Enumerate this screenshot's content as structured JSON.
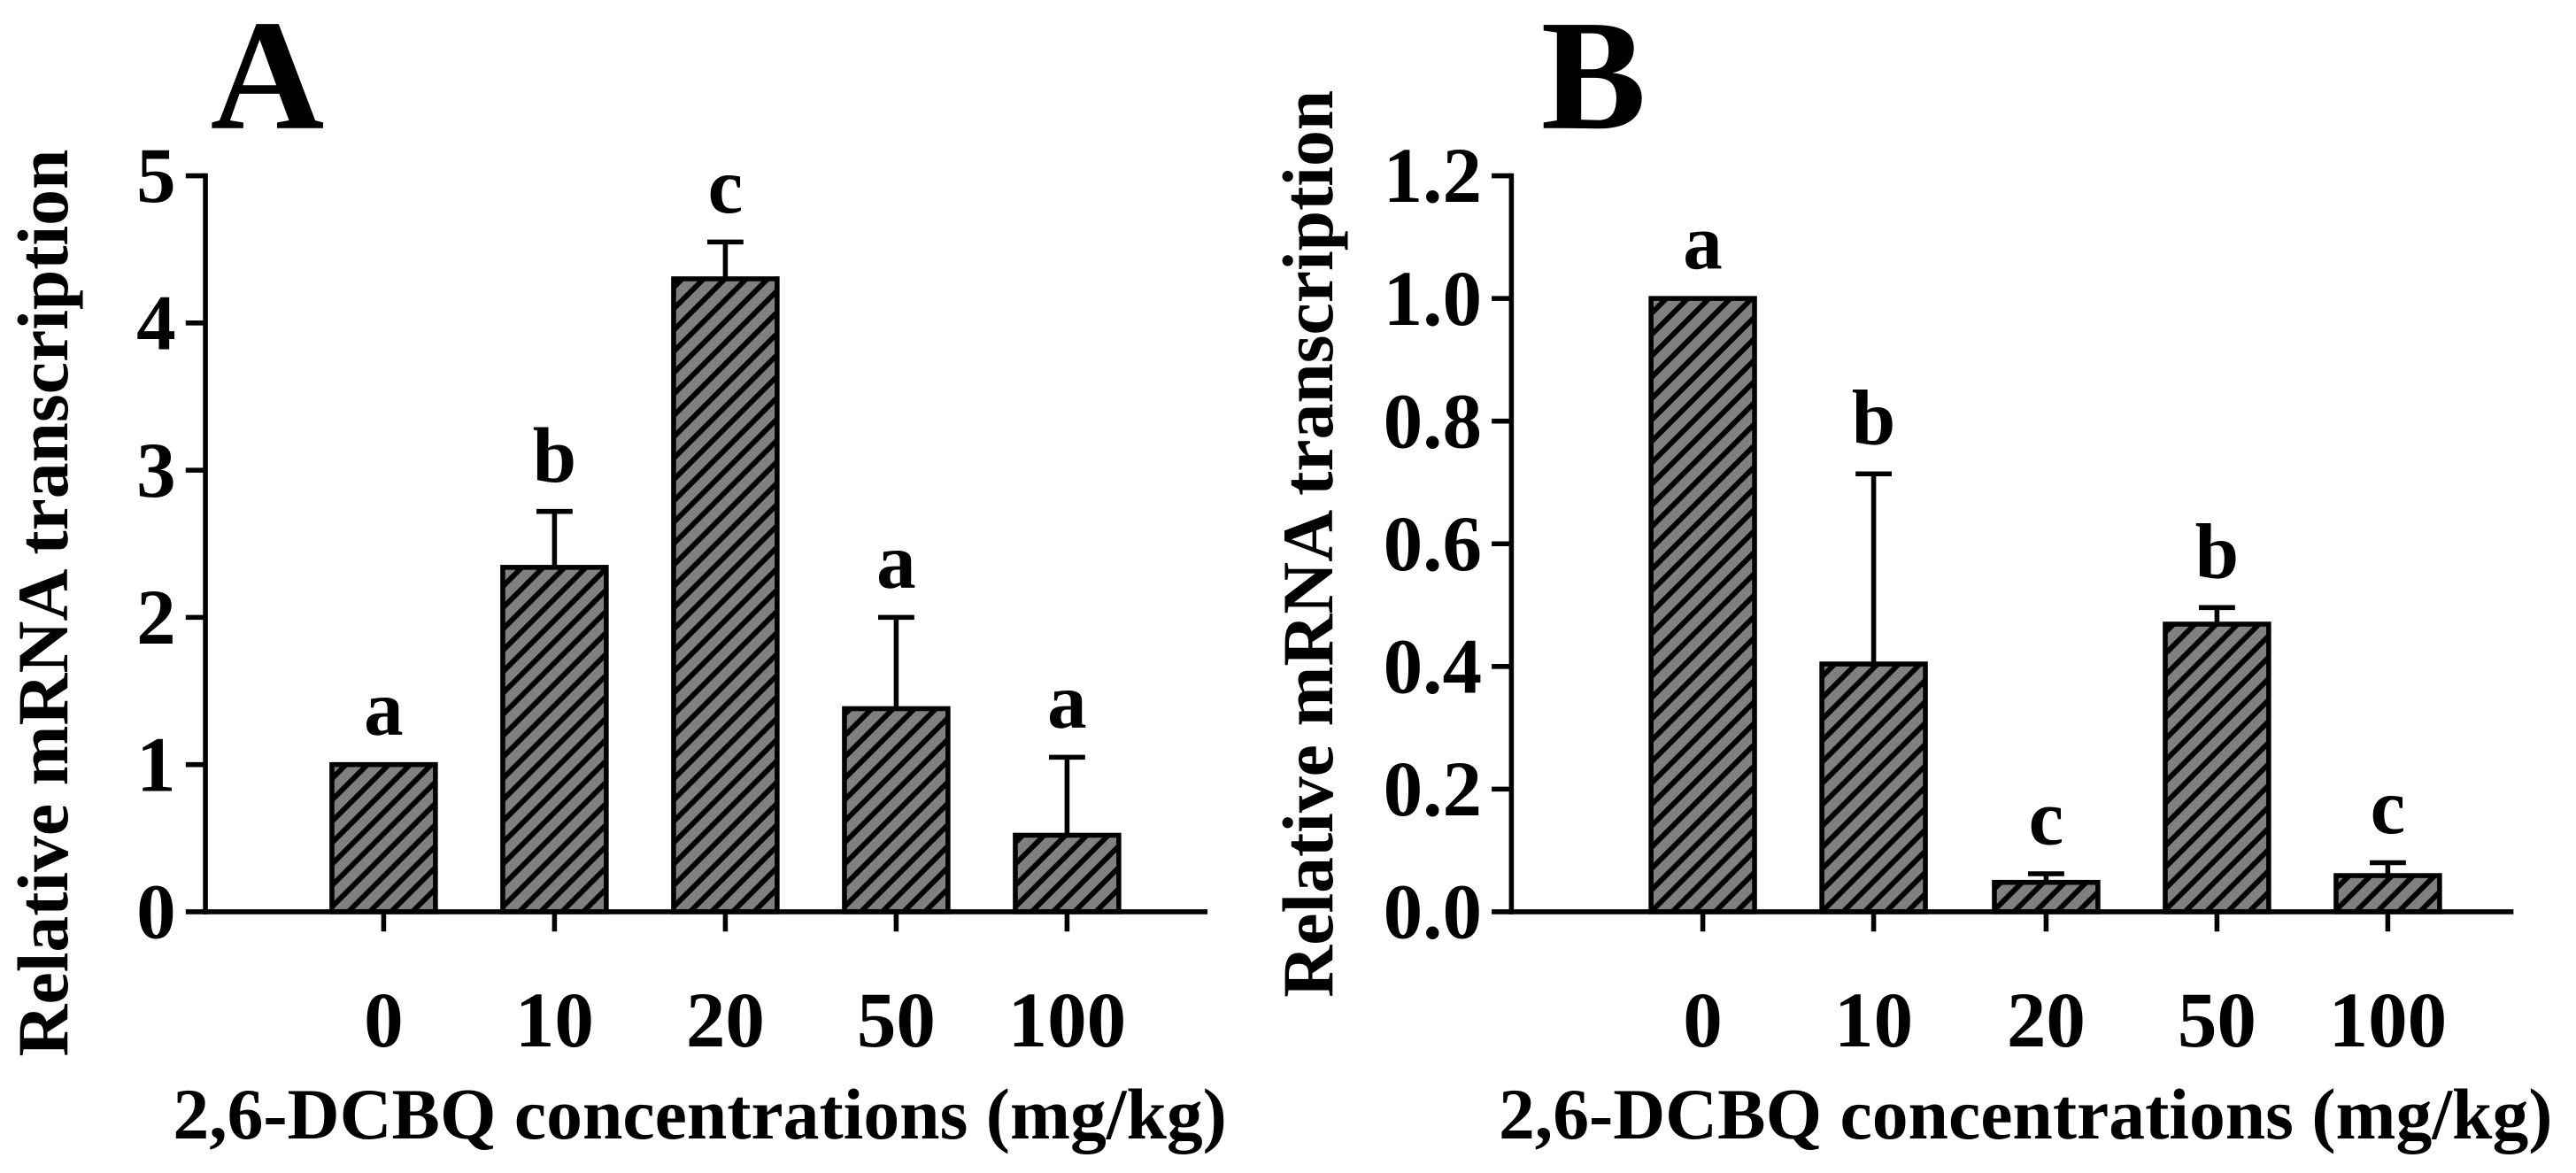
{
  "colors": {
    "bar_fill": "#808080",
    "hatch_line": "#000000",
    "axis": "#000000"
  },
  "chart_data": [
    {
      "panel": "A",
      "type": "bar",
      "categories": [
        "0",
        "10",
        "20",
        "50",
        "100"
      ],
      "values": [
        1.0,
        2.34,
        4.3,
        1.38,
        0.52
      ],
      "error_upper": [
        0,
        0.38,
        0.25,
        0.62,
        0.53
      ],
      "significance_letters": [
        "a",
        "b",
        "c",
        "a",
        "a"
      ],
      "ylim": [
        0,
        5
      ],
      "ytick_values": [
        0,
        1,
        2,
        3,
        4,
        5
      ],
      "yticks": [
        "0",
        "1",
        "2",
        "3",
        "4",
        "5"
      ],
      "xlabel": "2,6-DCBQ concentrations (mg/kg)",
      "ylabel": "Relative mRNA transcription"
    },
    {
      "panel": "B",
      "type": "bar",
      "categories": [
        "0",
        "10",
        "20",
        "50",
        "100"
      ],
      "values": [
        1.0,
        0.404,
        0.048,
        0.469,
        0.059
      ],
      "error_upper": [
        0,
        0.31,
        0.014,
        0.027,
        0.021
      ],
      "significance_letters": [
        "a",
        "b",
        "c",
        "b",
        "c"
      ],
      "ylim": [
        0,
        1.2
      ],
      "ytick_values": [
        0,
        0.2,
        0.4,
        0.6,
        0.8,
        1.0,
        1.2
      ],
      "yticks": [
        "0.0",
        "0.2",
        "0.4",
        "0.6",
        "0.8",
        "1.0",
        "1.2"
      ],
      "xlabel": "2,6-DCBQ concentrations (mg/kg)",
      "ylabel": "Relative mRNA transcription"
    }
  ]
}
